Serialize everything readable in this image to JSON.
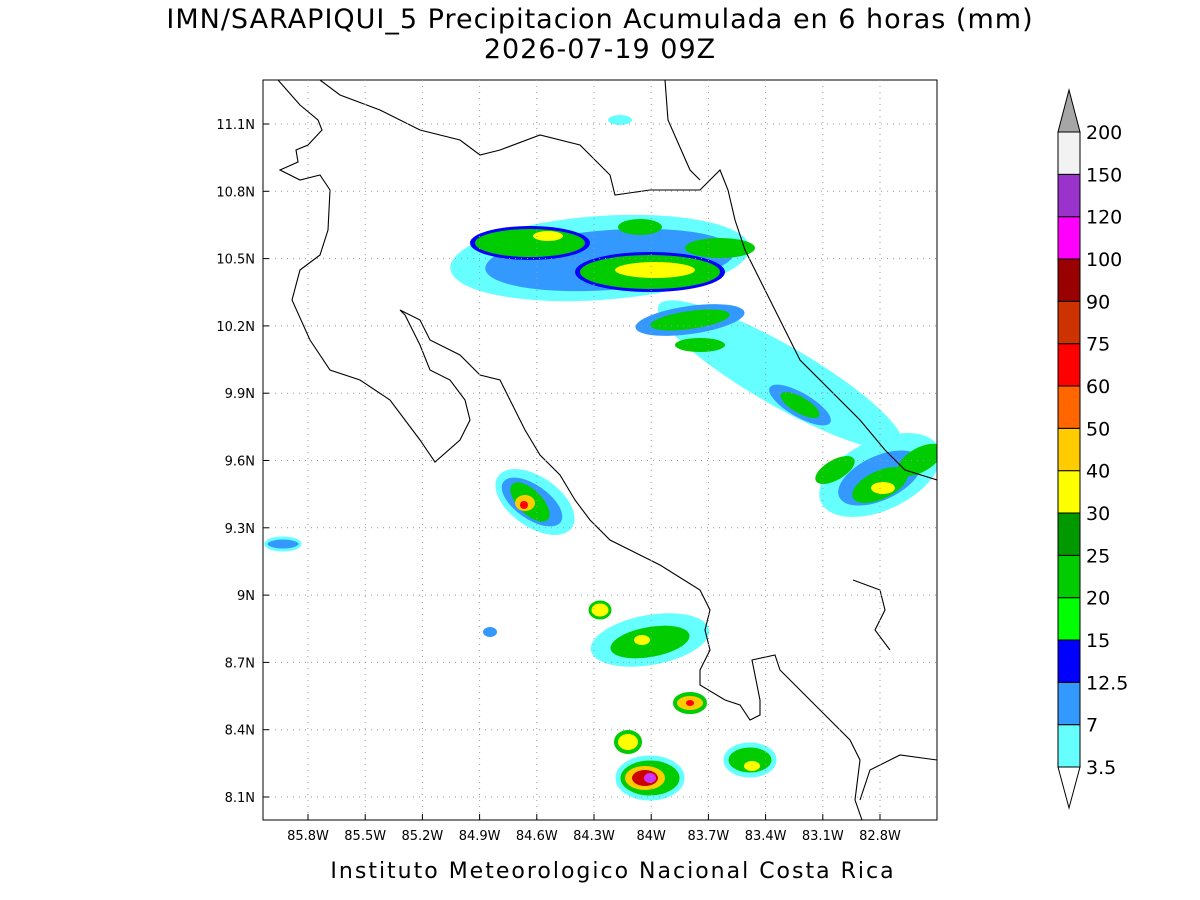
{
  "title": "IMN/SARAPIQUI_5 Precipitacion Acumulada en 6 horas (mm)",
  "subtitle": "2026-07-19 09Z",
  "footer": "Instituto Meteorologico Nacional Costa Rica",
  "lat_labels": [
    "11.1N",
    "10.8N",
    "10.5N",
    "10.2N",
    "9.9N",
    "9.6N",
    "9.3N",
    "9N",
    "8.7N",
    "8.4N",
    "8.1N"
  ],
  "lon_labels": [
    "85.8W",
    "85.5W",
    "85.2W",
    "84.9W",
    "84.6W",
    "84.3W",
    "84W",
    "83.7W",
    "83.4W",
    "83.1W",
    "82.8W"
  ],
  "legend": {
    "levels": [
      3.5,
      7,
      12.5,
      15,
      20,
      25,
      30,
      40,
      50,
      60,
      75,
      90,
      100,
      120,
      150,
      200
    ],
    "colors": [
      "#66ffff",
      "#3399ff",
      "#0000ff",
      "#00ff00",
      "#00cc00",
      "#009900",
      "#ffff00",
      "#ffcc00",
      "#ff6600",
      "#ff0000",
      "#cc3300",
      "#990000",
      "#ff00ff",
      "#9933cc",
      "#f2f2f2"
    ],
    "under_color": "#ffffff",
    "over_color": "#a6a6a6"
  }
}
